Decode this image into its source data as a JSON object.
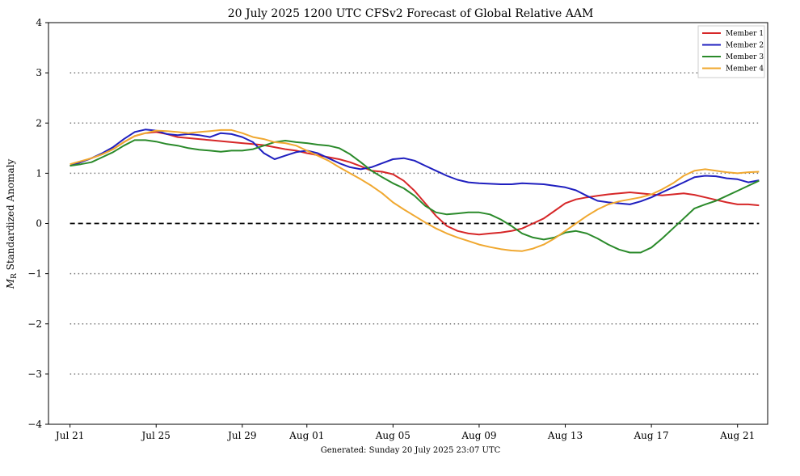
{
  "chart_data": {
    "type": "line",
    "title": "20  July  2025 1200 UTC   CFSv2 Forecast of Global Relative AAM",
    "ylabel": "M_R Standardized Anomaly",
    "ylabel_main": "M",
    "ylabel_sub": "R",
    "ylabel_rest": " Standardized Anomaly",
    "xlabel": "",
    "footer": "Generated: Sunday  20  July  2025  23:07 UTC",
    "x_start": "Jul 20",
    "xlim": [
      0,
      33.4
    ],
    "ylim": [
      -4,
      4
    ],
    "yticks": [
      -4,
      -3,
      -2,
      -1,
      0,
      1,
      2,
      3,
      4
    ],
    "ytick_labels": [
      "−4",
      "−3",
      "−2",
      "−1",
      "0",
      "1",
      "2",
      "3",
      "4"
    ],
    "xticks": [
      {
        "label": "Jul 21",
        "day": 1
      },
      {
        "label": "Jul 25",
        "day": 5
      },
      {
        "label": "Jul 29",
        "day": 9
      },
      {
        "label": "Aug 01",
        "day": 12
      },
      {
        "label": "Aug 05",
        "day": 16
      },
      {
        "label": "Aug 09",
        "day": 20
      },
      {
        "label": "Aug 13",
        "day": 24
      },
      {
        "label": "Aug 17",
        "day": 28
      },
      {
        "label": "Aug 21",
        "day": 32
      }
    ],
    "gridlines": [
      -3,
      -2,
      -1,
      1,
      2,
      3
    ],
    "zero_line": 0,
    "legend_position": "top-right",
    "series": [
      {
        "name": "Member 1",
        "color": "#d62728",
        "points": [
          [
            1.0,
            1.15
          ],
          [
            1.5,
            1.22
          ],
          [
            2.0,
            1.3
          ],
          [
            2.5,
            1.38
          ],
          [
            3.0,
            1.48
          ],
          [
            3.5,
            1.62
          ],
          [
            4.0,
            1.74
          ],
          [
            4.5,
            1.8
          ],
          [
            5.0,
            1.82
          ],
          [
            5.5,
            1.78
          ],
          [
            6.0,
            1.72
          ],
          [
            6.5,
            1.7
          ],
          [
            7.0,
            1.68
          ],
          [
            7.5,
            1.66
          ],
          [
            8.0,
            1.64
          ],
          [
            8.5,
            1.62
          ],
          [
            9.0,
            1.6
          ],
          [
            9.5,
            1.58
          ],
          [
            10.0,
            1.56
          ],
          [
            10.5,
            1.52
          ],
          [
            11.0,
            1.48
          ],
          [
            11.5,
            1.45
          ],
          [
            12.0,
            1.4
          ],
          [
            12.5,
            1.36
          ],
          [
            13.0,
            1.32
          ],
          [
            13.5,
            1.28
          ],
          [
            14.0,
            1.22
          ],
          [
            14.5,
            1.14
          ],
          [
            15.0,
            1.05
          ],
          [
            15.5,
            1.03
          ],
          [
            16.0,
            0.98
          ],
          [
            16.5,
            0.85
          ],
          [
            17.0,
            0.65
          ],
          [
            17.5,
            0.4
          ],
          [
            18.0,
            0.15
          ],
          [
            18.5,
            -0.05
          ],
          [
            19.0,
            -0.15
          ],
          [
            19.5,
            -0.2
          ],
          [
            20.0,
            -0.22
          ],
          [
            20.5,
            -0.2
          ],
          [
            21.0,
            -0.18
          ],
          [
            21.5,
            -0.15
          ],
          [
            22.0,
            -0.1
          ],
          [
            22.5,
            0.0
          ],
          [
            23.0,
            0.1
          ],
          [
            23.5,
            0.25
          ],
          [
            24.0,
            0.4
          ],
          [
            24.5,
            0.48
          ],
          [
            25.0,
            0.52
          ],
          [
            25.5,
            0.55
          ],
          [
            26.0,
            0.58
          ],
          [
            26.5,
            0.6
          ],
          [
            27.0,
            0.62
          ],
          [
            27.5,
            0.6
          ],
          [
            28.0,
            0.58
          ],
          [
            28.5,
            0.56
          ],
          [
            29.0,
            0.58
          ],
          [
            29.5,
            0.6
          ],
          [
            30.0,
            0.57
          ],
          [
            30.5,
            0.52
          ],
          [
            31.0,
            0.47
          ],
          [
            31.5,
            0.42
          ],
          [
            32.0,
            0.38
          ],
          [
            32.5,
            0.38
          ],
          [
            33.0,
            0.36
          ]
        ]
      },
      {
        "name": "Member 2",
        "color": "#1f1fbf",
        "points": [
          [
            1.0,
            1.15
          ],
          [
            1.5,
            1.22
          ],
          [
            2.0,
            1.3
          ],
          [
            2.5,
            1.4
          ],
          [
            3.0,
            1.52
          ],
          [
            3.5,
            1.68
          ],
          [
            4.0,
            1.82
          ],
          [
            4.5,
            1.87
          ],
          [
            5.0,
            1.85
          ],
          [
            5.5,
            1.78
          ],
          [
            6.0,
            1.76
          ],
          [
            6.5,
            1.78
          ],
          [
            7.0,
            1.76
          ],
          [
            7.5,
            1.72
          ],
          [
            8.0,
            1.8
          ],
          [
            8.5,
            1.78
          ],
          [
            9.0,
            1.72
          ],
          [
            9.5,
            1.62
          ],
          [
            10.0,
            1.4
          ],
          [
            10.5,
            1.28
          ],
          [
            11.0,
            1.35
          ],
          [
            11.5,
            1.42
          ],
          [
            12.0,
            1.45
          ],
          [
            12.5,
            1.4
          ],
          [
            13.0,
            1.3
          ],
          [
            13.5,
            1.2
          ],
          [
            14.0,
            1.12
          ],
          [
            14.5,
            1.08
          ],
          [
            15.0,
            1.12
          ],
          [
            15.5,
            1.2
          ],
          [
            16.0,
            1.28
          ],
          [
            16.5,
            1.3
          ],
          [
            17.0,
            1.25
          ],
          [
            17.5,
            1.15
          ],
          [
            18.0,
            1.05
          ],
          [
            18.5,
            0.95
          ],
          [
            19.0,
            0.87
          ],
          [
            19.5,
            0.82
          ],
          [
            20.0,
            0.8
          ],
          [
            20.5,
            0.79
          ],
          [
            21.0,
            0.78
          ],
          [
            21.5,
            0.78
          ],
          [
            22.0,
            0.8
          ],
          [
            22.5,
            0.79
          ],
          [
            23.0,
            0.78
          ],
          [
            23.5,
            0.75
          ],
          [
            24.0,
            0.72
          ],
          [
            24.5,
            0.66
          ],
          [
            25.0,
            0.55
          ],
          [
            25.5,
            0.45
          ],
          [
            26.0,
            0.42
          ],
          [
            26.5,
            0.4
          ],
          [
            27.0,
            0.38
          ],
          [
            27.5,
            0.44
          ],
          [
            28.0,
            0.52
          ],
          [
            28.5,
            0.62
          ],
          [
            29.0,
            0.72
          ],
          [
            29.5,
            0.82
          ],
          [
            30.0,
            0.92
          ],
          [
            30.5,
            0.95
          ],
          [
            31.0,
            0.94
          ],
          [
            31.5,
            0.9
          ],
          [
            32.0,
            0.88
          ],
          [
            32.5,
            0.82
          ],
          [
            33.0,
            0.86
          ]
        ]
      },
      {
        "name": "Member 3",
        "color": "#2a8a2a",
        "points": [
          [
            1.0,
            1.15
          ],
          [
            1.5,
            1.18
          ],
          [
            2.0,
            1.22
          ],
          [
            2.5,
            1.32
          ],
          [
            3.0,
            1.42
          ],
          [
            3.5,
            1.55
          ],
          [
            4.0,
            1.66
          ],
          [
            4.5,
            1.66
          ],
          [
            5.0,
            1.63
          ],
          [
            5.5,
            1.58
          ],
          [
            6.0,
            1.55
          ],
          [
            6.5,
            1.5
          ],
          [
            7.0,
            1.47
          ],
          [
            7.5,
            1.45
          ],
          [
            8.0,
            1.43
          ],
          [
            8.5,
            1.45
          ],
          [
            9.0,
            1.45
          ],
          [
            9.5,
            1.48
          ],
          [
            10.0,
            1.55
          ],
          [
            10.5,
            1.62
          ],
          [
            11.0,
            1.65
          ],
          [
            11.5,
            1.62
          ],
          [
            12.0,
            1.6
          ],
          [
            12.5,
            1.57
          ],
          [
            13.0,
            1.55
          ],
          [
            13.5,
            1.5
          ],
          [
            14.0,
            1.38
          ],
          [
            14.5,
            1.22
          ],
          [
            15.0,
            1.05
          ],
          [
            15.5,
            0.92
          ],
          [
            16.0,
            0.8
          ],
          [
            16.5,
            0.7
          ],
          [
            17.0,
            0.55
          ],
          [
            17.5,
            0.35
          ],
          [
            18.0,
            0.22
          ],
          [
            18.5,
            0.18
          ],
          [
            19.0,
            0.2
          ],
          [
            19.5,
            0.22
          ],
          [
            20.0,
            0.22
          ],
          [
            20.5,
            0.18
          ],
          [
            21.0,
            0.08
          ],
          [
            21.5,
            -0.05
          ],
          [
            22.0,
            -0.2
          ],
          [
            22.5,
            -0.28
          ],
          [
            23.0,
            -0.32
          ],
          [
            23.5,
            -0.28
          ],
          [
            24.0,
            -0.18
          ],
          [
            24.5,
            -0.15
          ],
          [
            25.0,
            -0.2
          ],
          [
            25.5,
            -0.3
          ],
          [
            26.0,
            -0.42
          ],
          [
            26.5,
            -0.52
          ],
          [
            27.0,
            -0.58
          ],
          [
            27.5,
            -0.58
          ],
          [
            28.0,
            -0.48
          ],
          [
            28.5,
            -0.3
          ],
          [
            29.0,
            -0.1
          ],
          [
            29.5,
            0.1
          ],
          [
            30.0,
            0.3
          ],
          [
            30.5,
            0.38
          ],
          [
            31.0,
            0.45
          ],
          [
            31.5,
            0.55
          ],
          [
            32.0,
            0.65
          ],
          [
            32.5,
            0.75
          ],
          [
            33.0,
            0.85
          ]
        ]
      },
      {
        "name": "Member 4",
        "color": "#f0a830",
        "points": [
          [
            1.0,
            1.18
          ],
          [
            1.5,
            1.24
          ],
          [
            2.0,
            1.3
          ],
          [
            2.5,
            1.38
          ],
          [
            3.0,
            1.48
          ],
          [
            3.5,
            1.62
          ],
          [
            4.0,
            1.74
          ],
          [
            4.5,
            1.8
          ],
          [
            5.0,
            1.85
          ],
          [
            5.5,
            1.84
          ],
          [
            6.0,
            1.82
          ],
          [
            6.5,
            1.8
          ],
          [
            7.0,
            1.82
          ],
          [
            7.5,
            1.84
          ],
          [
            8.0,
            1.86
          ],
          [
            8.5,
            1.86
          ],
          [
            9.0,
            1.8
          ],
          [
            9.5,
            1.72
          ],
          [
            10.0,
            1.68
          ],
          [
            10.5,
            1.62
          ],
          [
            11.0,
            1.6
          ],
          [
            11.5,
            1.55
          ],
          [
            12.0,
            1.45
          ],
          [
            12.5,
            1.35
          ],
          [
            13.0,
            1.25
          ],
          [
            13.5,
            1.12
          ],
          [
            14.0,
            1.0
          ],
          [
            14.5,
            0.88
          ],
          [
            15.0,
            0.75
          ],
          [
            15.5,
            0.6
          ],
          [
            16.0,
            0.42
          ],
          [
            16.5,
            0.28
          ],
          [
            17.0,
            0.15
          ],
          [
            17.5,
            0.02
          ],
          [
            18.0,
            -0.1
          ],
          [
            18.5,
            -0.2
          ],
          [
            19.0,
            -0.28
          ],
          [
            19.5,
            -0.35
          ],
          [
            20.0,
            -0.42
          ],
          [
            20.5,
            -0.47
          ],
          [
            21.0,
            -0.51
          ],
          [
            21.5,
            -0.54
          ],
          [
            22.0,
            -0.55
          ],
          [
            22.5,
            -0.5
          ],
          [
            23.0,
            -0.42
          ],
          [
            23.5,
            -0.3
          ],
          [
            24.0,
            -0.15
          ],
          [
            24.5,
            0.0
          ],
          [
            25.0,
            0.15
          ],
          [
            25.5,
            0.28
          ],
          [
            26.0,
            0.38
          ],
          [
            26.5,
            0.44
          ],
          [
            27.0,
            0.48
          ],
          [
            27.5,
            0.52
          ],
          [
            28.0,
            0.58
          ],
          [
            28.5,
            0.68
          ],
          [
            29.0,
            0.8
          ],
          [
            29.5,
            0.95
          ],
          [
            30.0,
            1.05
          ],
          [
            30.5,
            1.08
          ],
          [
            31.0,
            1.05
          ],
          [
            31.5,
            1.02
          ],
          [
            32.0,
            1.0
          ],
          [
            32.5,
            1.02
          ],
          [
            33.0,
            1.03
          ]
        ]
      }
    ]
  }
}
